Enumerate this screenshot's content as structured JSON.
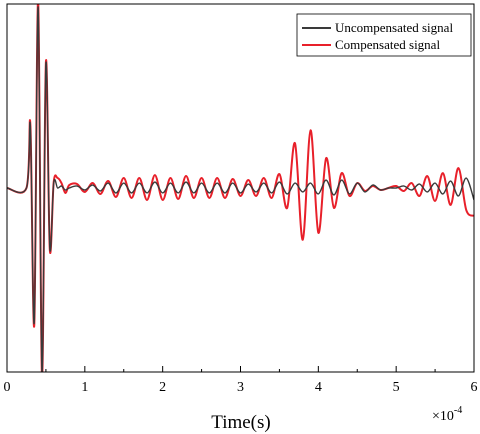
{
  "chart_data": {
    "type": "line",
    "title": "",
    "xlabel": "Time(s)",
    "ylabel": "",
    "x_multiplier": "×10",
    "x_multiplier_exp": "-4",
    "xlim": [
      0,
      6
    ],
    "ylim": [
      -1.85,
      1.85
    ],
    "x_ticks": [
      0,
      1,
      2,
      3,
      4,
      5,
      6
    ],
    "x_tick_labels": [
      "0",
      "1",
      "2",
      "3",
      "4",
      "5",
      "6"
    ],
    "grid": false,
    "legend_position": "top-right",
    "series": [
      {
        "name": "Uncompensated signal",
        "color": "#3a3a3a",
        "x": [
          0,
          0.25,
          0.3,
          0.35,
          0.4,
          0.45,
          0.5,
          0.55,
          0.6,
          0.65,
          0.7,
          0.75,
          0.8,
          0.9,
          1.0,
          1.1,
          1.2,
          1.3,
          1.4,
          1.5,
          1.6,
          1.7,
          1.8,
          1.9,
          2.0,
          2.1,
          2.2,
          2.3,
          2.4,
          2.5,
          2.6,
          2.7,
          2.8,
          2.9,
          3.0,
          3.1,
          3.2,
          3.3,
          3.4,
          3.5,
          3.6,
          3.7,
          3.8,
          3.9,
          4.0,
          4.1,
          4.2,
          4.3,
          4.4,
          4.5,
          4.6,
          4.7,
          4.8,
          4.9,
          5.0,
          5.1,
          5.2,
          5.3,
          5.4,
          5.5,
          5.6,
          5.7,
          5.8,
          5.9,
          6.0
        ],
        "y": [
          0,
          0,
          0.62,
          -1.35,
          1.82,
          -1.85,
          1.25,
          -0.6,
          0.05,
          0,
          0.02,
          -0.02,
          0,
          0.02,
          -0.02,
          0.03,
          -0.03,
          0.05,
          -0.05,
          0.05,
          -0.05,
          0.05,
          -0.05,
          0.06,
          -0.05,
          0.05,
          -0.05,
          0.06,
          -0.05,
          0.05,
          -0.05,
          0.05,
          -0.05,
          0.05,
          -0.05,
          0.04,
          -0.04,
          0.05,
          -0.05,
          0.06,
          -0.06,
          0.05,
          -0.04,
          0.05,
          -0.06,
          0.08,
          -0.07,
          0.08,
          -0.06,
          0.05,
          -0.04,
          0.03,
          -0.02,
          0,
          0,
          0.02,
          -0.02,
          0.04,
          -0.04,
          0.05,
          -0.06,
          0.07,
          -0.08,
          0.1,
          -0.12
        ]
      },
      {
        "name": "Compensated signal",
        "color": "#e8202a",
        "x": [
          0,
          0.25,
          0.3,
          0.35,
          0.4,
          0.45,
          0.5,
          0.55,
          0.6,
          0.65,
          0.7,
          0.75,
          0.8,
          0.9,
          1.0,
          1.1,
          1.2,
          1.3,
          1.4,
          1.5,
          1.6,
          1.7,
          1.8,
          1.9,
          2.0,
          2.1,
          2.2,
          2.3,
          2.4,
          2.5,
          2.6,
          2.7,
          2.8,
          2.9,
          3.0,
          3.1,
          3.2,
          3.3,
          3.4,
          3.5,
          3.6,
          3.7,
          3.8,
          3.9,
          4.0,
          4.1,
          4.2,
          4.3,
          4.4,
          4.5,
          4.6,
          4.7,
          4.8,
          4.9,
          5.0,
          5.1,
          5.2,
          5.3,
          5.4,
          5.5,
          5.6,
          5.7,
          5.8,
          5.9,
          6.0
        ],
        "y": [
          0,
          0,
          0.64,
          -1.38,
          1.88,
          -1.9,
          1.27,
          -0.62,
          0.06,
          0.1,
          0.05,
          -0.05,
          0.03,
          0.04,
          -0.04,
          0.05,
          -0.06,
          0.07,
          -0.09,
          0.1,
          -0.1,
          0.1,
          -0.12,
          0.13,
          -0.12,
          0.1,
          -0.11,
          0.12,
          -0.1,
          0.1,
          -0.1,
          0.1,
          -0.1,
          0.09,
          -0.08,
          0.08,
          -0.08,
          0.1,
          -0.1,
          0.14,
          -0.2,
          0.45,
          -0.52,
          0.58,
          -0.45,
          0.3,
          -0.2,
          0.15,
          -0.08,
          0.05,
          -0.03,
          0.02,
          -0.02,
          0,
          0.02,
          -0.03,
          0.05,
          -0.08,
          0.12,
          -0.13,
          0.15,
          -0.17,
          0.2,
          -0.22,
          -0.28
        ]
      }
    ]
  }
}
